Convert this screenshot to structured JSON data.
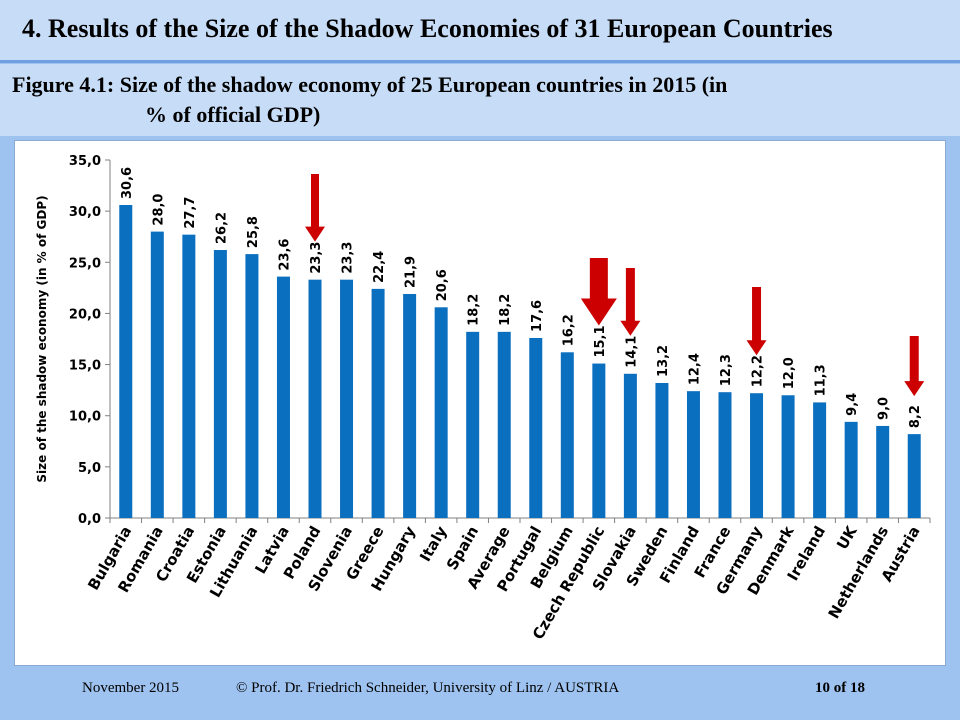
{
  "slide": {
    "title": "4. Results of the Size of the Shadow Economies of 31 European Countries",
    "caption_line1": "Figure 4.1: Size of the shadow economy of 25 European countries in 2015 (in",
    "caption_line2": "% of official  GDP)"
  },
  "footer": {
    "date": "November 2015",
    "author": "© Prof. Dr. Friedrich Schneider, University of Linz / AUSTRIA",
    "page": "10 of 18"
  },
  "chart_data": {
    "type": "bar",
    "title": "",
    "xlabel": "",
    "ylabel": "Size of the shadow economy (in % of GDP)",
    "ylim": [
      0,
      35
    ],
    "yticks": [
      "0,0",
      "5,0",
      "10,0",
      "15,0",
      "20,0",
      "25,0",
      "30,0",
      "35,0"
    ],
    "grid": false,
    "bar_color": "#0b6fc0",
    "arrow_color": "#cc0000",
    "categories": [
      "Bulgaria",
      "Romania",
      "Croatia",
      "Estonia",
      "Lithuania",
      "Latvia",
      "Poland",
      "Slovenia",
      "Greece",
      "Hungary",
      "Italy",
      "Spain",
      "Average",
      "Portugal",
      "Belgium",
      "Czech Republic",
      "Slovakia",
      "Sweden",
      "Finland",
      "France",
      "Germany",
      "Denmark",
      "Ireland",
      "UK",
      "Netherlands",
      "Austria"
    ],
    "values": [
      30.6,
      28.0,
      27.7,
      26.2,
      25.8,
      23.6,
      23.3,
      23.3,
      22.4,
      21.9,
      20.6,
      18.2,
      18.2,
      17.6,
      16.2,
      15.1,
      14.1,
      13.2,
      12.4,
      12.3,
      12.2,
      12.0,
      11.3,
      9.4,
      9.0,
      8.2
    ],
    "value_labels": [
      "30,6",
      "28,0",
      "27,7",
      "26,2",
      "25,8",
      "23,6",
      "23,3",
      "23,3",
      "22,4",
      "21,9",
      "20,6",
      "18,2",
      "18,2",
      "17,6",
      "16,2",
      "15,1",
      "14,1",
      "13,2",
      "12,4",
      "12,3",
      "12,2",
      "12,0",
      "11,3",
      "9,4",
      "9,0",
      "8,2"
    ],
    "highlighted": [
      "Poland",
      "Czech Republic",
      "Slovakia",
      "Germany",
      "Austria"
    ]
  }
}
